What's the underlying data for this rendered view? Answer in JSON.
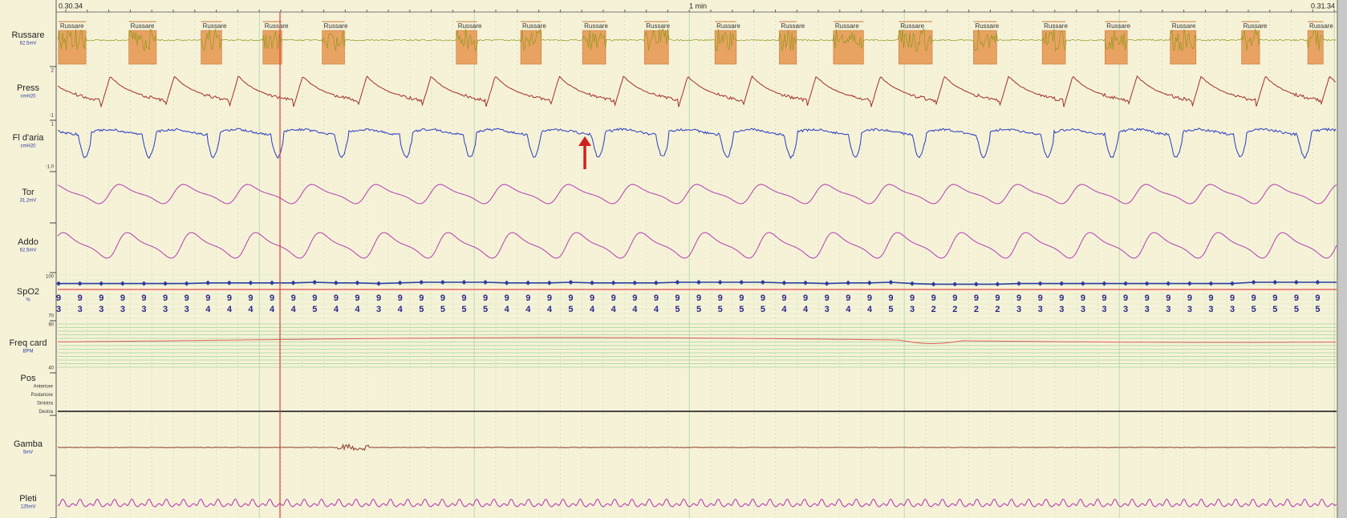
{
  "header": {
    "start_time": "0.30.34",
    "scale": "1 min",
    "end_time": "0.31.34"
  },
  "channels": [
    {
      "label": "Russare",
      "unit": "62.5mV"
    },
    {
      "label": "Press",
      "unit": "cmH20",
      "scale_top": "2",
      "scale_bottom": "-1"
    },
    {
      "label": "Fl d'aria",
      "unit": "cmH20",
      "scale_top": "1",
      "scale_bottom": "-1.0"
    },
    {
      "label": "Tor",
      "unit": "31.2mV"
    },
    {
      "label": "Addo",
      "unit": "62.5mV"
    },
    {
      "label": "SpO2",
      "unit": "%",
      "scale_top": "100",
      "scale_bottom": "70"
    },
    {
      "label": "Freq card",
      "unit": "BPM",
      "scale_top": "90",
      "scale_bottom": "40"
    },
    {
      "label": "Pos"
    },
    {
      "label": "Gamba",
      "unit": "5mV"
    },
    {
      "label": "Pleti",
      "unit": "125mV"
    }
  ],
  "positions": [
    "Anteriore",
    "Posteriore",
    "Sinistra",
    "Destra"
  ],
  "events": {
    "labels": [
      "Russare",
      "Russare",
      "Russare",
      "Russare",
      "Russare",
      "Russare",
      "Russare",
      "Russare",
      "Russare",
      "Russare",
      "Russare",
      "Russare",
      "Russare",
      "Russare",
      "Russare",
      "Russare",
      "Russare",
      "Russare",
      "Russare"
    ]
  },
  "spo2": {
    "values": [
      93,
      93,
      93,
      93,
      93,
      93,
      93,
      94,
      94,
      94,
      94,
      94,
      95,
      94,
      94,
      93,
      94,
      95,
      95,
      95,
      95,
      94,
      94,
      94,
      95,
      94,
      94,
      94,
      94,
      95,
      95,
      95,
      95,
      95,
      94,
      94,
      93,
      94,
      94,
      95,
      93,
      92,
      92,
      92,
      92,
      93,
      93,
      93,
      93,
      93,
      93,
      93,
      93,
      93,
      93,
      93,
      95,
      95,
      95,
      95
    ]
  }
}
